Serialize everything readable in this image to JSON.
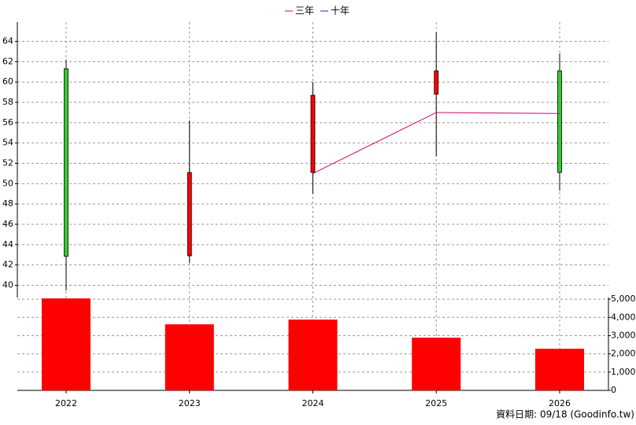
{
  "chart_data": {
    "type": "candlestick",
    "categories": [
      "2022",
      "2023",
      "2024",
      "2025",
      "2026"
    ],
    "candles": {
      "open": [
        61.3,
        42.9,
        51.1,
        58.8,
        61.1
      ],
      "high": [
        62.2,
        56.2,
        60.0,
        64.9,
        62.8
      ],
      "low": [
        39.5,
        42.2,
        49.0,
        52.7,
        49.3
      ],
      "close": [
        42.85,
        51.1,
        58.7,
        61.1,
        51.1
      ],
      "up_color": "#ff0000",
      "down_color": "#33cc33"
    },
    "series": [
      {
        "name": "三年",
        "color": "#d0006a",
        "values": [
          null,
          null,
          51.0,
          57.0,
          56.9
        ]
      },
      {
        "name": "十年",
        "color": "#6a00c8",
        "values": [
          null,
          null,
          null,
          null,
          null
        ]
      }
    ],
    "volume": {
      "color": "#ff0000",
      "axis": "y2",
      "values": [
        5040,
        3620,
        3880,
        2890,
        2280
      ]
    },
    "ylim": [
      38.8,
      65.9
    ],
    "yticks": [
      40,
      42,
      44,
      46,
      48,
      50,
      52,
      54,
      56,
      58,
      60,
      62,
      64
    ],
    "y2lim": [
      0,
      5090
    ],
    "y2ticks": [
      0,
      {
        "value": 1000,
        "label": "1,000"
      },
      {
        "value": 2000,
        "label": "2,000"
      },
      {
        "value": 3000,
        "label": "3,000"
      },
      {
        "value": 4000,
        "label": "4,000"
      },
      {
        "value": 5000,
        "label": "5,000"
      }
    ],
    "grid": true,
    "legend": "top",
    "source": "資料日期: 09/18  (Goodinfo.tw)"
  }
}
